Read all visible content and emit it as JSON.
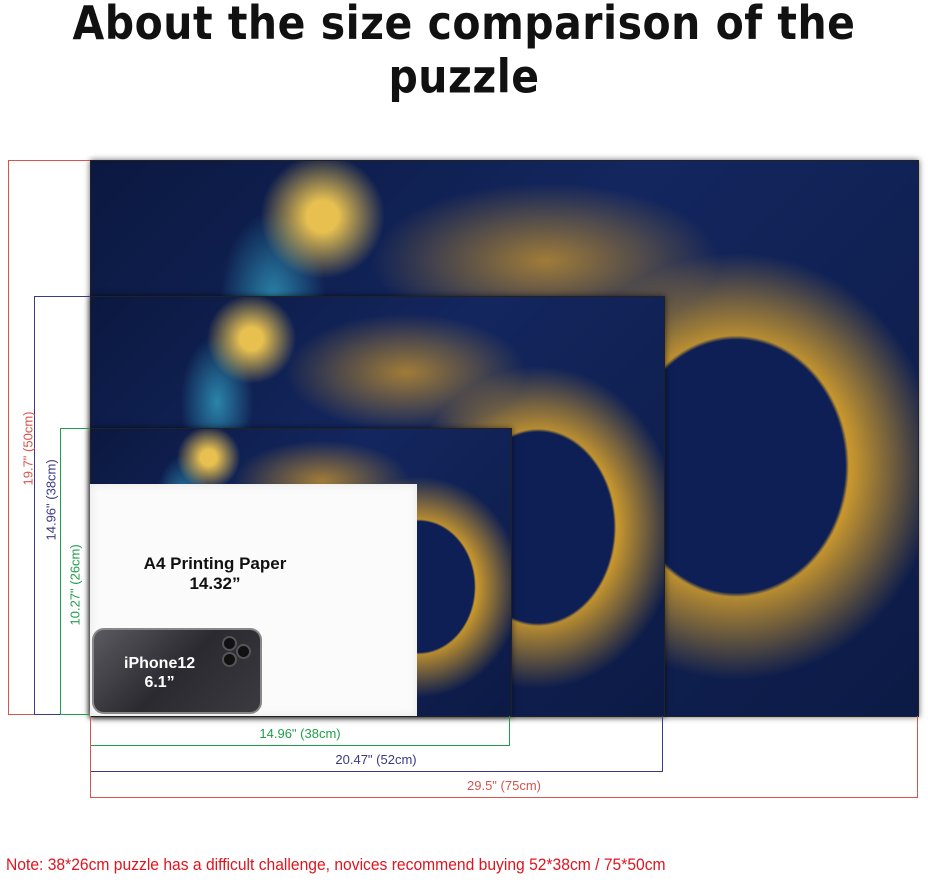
{
  "title": "About the size comparison of the puzzle",
  "sizes": {
    "large": {
      "height_label": "19.7\" (50cm)",
      "width_label": "29.5\" (75cm)",
      "color": "#d9534f"
    },
    "medium": {
      "height_label": "14.96\" (38cm)",
      "width_label": "20.47\" (52cm)",
      "color": "#3a3a85"
    },
    "small": {
      "height_label": "10.27\" (26cm)",
      "width_label": "14.96\" (38cm)",
      "color": "#1f9e4a"
    }
  },
  "paper": {
    "name": "A4 Printing Paper",
    "size": "14.32”"
  },
  "phone": {
    "name": "iPhone12",
    "size": "6.1”"
  },
  "note": "Note:  38*26cm puzzle has a difficult challenge, novices recommend buying 52*38cm / 75*50cm"
}
